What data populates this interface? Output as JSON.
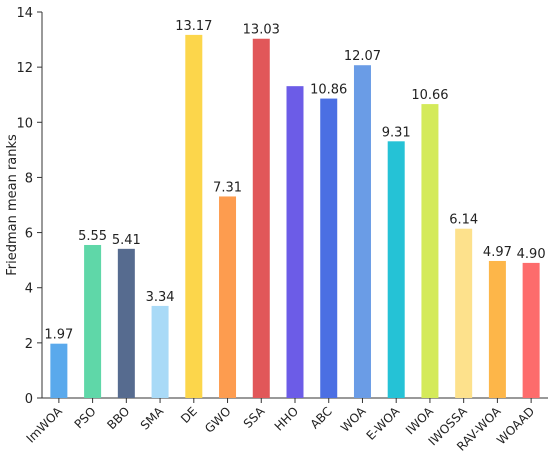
{
  "chart_data": {
    "type": "bar",
    "xlabel": "",
    "ylabel": "Friedman mean ranks",
    "ylim": [
      0,
      14
    ],
    "yticks": [
      "0",
      "2",
      "4",
      "6",
      "8",
      "10",
      "12",
      "14"
    ],
    "grid": false,
    "categories": [
      "ImWOA",
      "PSO",
      "BBO",
      "SMA",
      "DE",
      "GWO",
      "SSA",
      "HHO",
      "ABC",
      "WOA",
      "E-WOA",
      "IWOA",
      "IWOSSA",
      "RAV-WOA",
      "WOAAD"
    ],
    "values": [
      1.97,
      5.55,
      5.41,
      3.34,
      13.17,
      7.31,
      13.03,
      11.31,
      10.86,
      12.07,
      9.31,
      10.66,
      6.14,
      4.97,
      4.9
    ],
    "data_labels": [
      "1.97",
      "5.55",
      "5.41",
      "3.34",
      "13.17",
      "7.31",
      "13.03",
      "",
      "10.86",
      "12.07",
      "9.31",
      "10.66",
      "6.14",
      "4.97",
      "4.90"
    ],
    "colors": [
      "#5aa9ec",
      "#5fd7a8",
      "#566b8f",
      "#a9daf7",
      "#fcd64b",
      "#fd9c4f",
      "#e15759",
      "#6c5ce7",
      "#4b6fe3",
      "#6a9ce6",
      "#25c2d6",
      "#d4ea5a",
      "#fde18c",
      "#fdb649",
      "#fd6c6c"
    ]
  }
}
